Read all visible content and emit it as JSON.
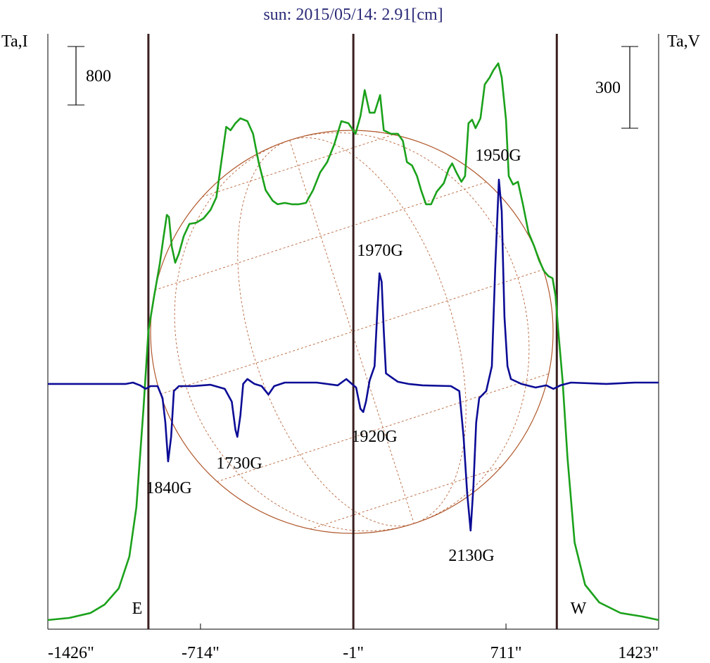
{
  "chart_data": {
    "type": "line",
    "title": "sun: 2015/05/14: 2.91[cm]",
    "y_label": "Ta,I",
    "y2_label": "Ta,V",
    "xlim": [
      -1426,
      1423
    ],
    "xticks": [
      {
        "value": -1426,
        "label": "-1426\""
      },
      {
        "value": -714,
        "label": "-714\""
      },
      {
        "value": -1,
        "label": "-1\""
      },
      {
        "value": 711,
        "label": "711\""
      },
      {
        "value": 1423,
        "label": "1423\""
      }
    ],
    "ylim": [
      0,
      8145
    ],
    "y2lim": [
      -900,
      1285
    ],
    "scale_bars": [
      {
        "value": 800,
        "axis": "y"
      },
      {
        "value": 300,
        "axis": "y2"
      }
    ],
    "vlines": [
      -957,
      -1,
      948
    ],
    "vline_color": "#3a1e1e",
    "disc_color": "#b0582c",
    "annotations": [
      "1950G",
      "1970G",
      "1920G",
      "1840G",
      "1730G",
      "2130G",
      "E",
      "W"
    ],
    "series": [
      {
        "color": "#1ba11b",
        "axis": "y",
        "x": [
          -1426,
          -1326,
          -1227,
          -1161,
          -1095,
          -1046,
          -1013,
          -980,
          -957,
          -930,
          -904,
          -888,
          -871,
          -861,
          -848,
          -832,
          -815,
          -792,
          -766,
          -733,
          -700,
          -667,
          -640,
          -617,
          -594,
          -574,
          -551,
          -528,
          -495,
          -469,
          -443,
          -410,
          -377,
          -354,
          -321,
          -288,
          -255,
          -222,
          -189,
          -156,
          -123,
          -90,
          -57,
          -24,
          9,
          32,
          52,
          75,
          98,
          124,
          141,
          174,
          207,
          230,
          249,
          273,
          296,
          315,
          338,
          362,
          388,
          421,
          444,
          460,
          480,
          503,
          520,
          536,
          553,
          569,
          592,
          612,
          635,
          652,
          675,
          691,
          711,
          724,
          744,
          767,
          790,
          816,
          843,
          866,
          889,
          909,
          928,
          942,
          955,
          975,
          998,
          1031,
          1080,
          1146,
          1245,
          1344,
          1423
        ],
        "values": [
          125,
          154,
          222,
          337,
          559,
          993,
          1668,
          3017,
          4078,
          4560,
          4994,
          5331,
          5668,
          5639,
          5235,
          5013,
          5138,
          5379,
          5543,
          5562,
          5620,
          5736,
          5909,
          6391,
          6873,
          6825,
          6922,
          6989,
          6950,
          6777,
          6391,
          6006,
          5861,
          5813,
          5832,
          5813,
          5813,
          5832,
          6006,
          6247,
          6391,
          6632,
          6950,
          6922,
          6777,
          7018,
          7375,
          7066,
          7066,
          7307,
          6825,
          6777,
          6777,
          6681,
          6391,
          6343,
          6199,
          6006,
          5813,
          5813,
          5986,
          6102,
          6295,
          6372,
          6247,
          6121,
          6199,
          6922,
          6970,
          6854,
          6989,
          7452,
          7548,
          7645,
          7741,
          7548,
          6970,
          6199,
          6083,
          6121,
          5813,
          5427,
          5235,
          5042,
          4897,
          4830,
          4801,
          4560,
          4078,
          3403,
          2343,
          1186,
          607,
          366,
          222,
          174,
          125
        ]
      },
      {
        "color": "#0c0c96",
        "axis": "y2",
        "x": [
          -1426,
          -1062,
          -1029,
          -996,
          -970,
          -947,
          -914,
          -891,
          -878,
          -865,
          -851,
          -838,
          -815,
          -749,
          -667,
          -601,
          -568,
          -551,
          -542,
          -528,
          -515,
          -495,
          -462,
          -429,
          -397,
          -370,
          -321,
          -172,
          -74,
          -34,
          -8,
          12,
          32,
          45,
          58,
          75,
          98,
          111,
          121,
          131,
          141,
          151,
          174,
          207,
          256,
          322,
          454,
          493,
          513,
          530,
          546,
          559,
          572,
          586,
          619,
          645,
          661,
          678,
          691,
          704,
          718,
          734,
          783,
          849,
          899,
          932,
          965,
          1014,
          1179,
          1311,
          1423
        ],
        "values": [
          0,
          0,
          5,
          -5,
          -18,
          -8,
          -8,
          -52,
          -142,
          -284,
          -194,
          -26,
          -8,
          -8,
          -3,
          -18,
          -65,
          -168,
          -194,
          -116,
          0,
          18,
          0,
          -8,
          -39,
          -8,
          5,
          5,
          -5,
          18,
          0,
          -13,
          -91,
          -103,
          -65,
          13,
          65,
          272,
          406,
          375,
          194,
          39,
          26,
          8,
          0,
          -5,
          -8,
          -26,
          -194,
          -401,
          -538,
          -375,
          -142,
          -52,
          -26,
          65,
          427,
          750,
          634,
          246,
          65,
          18,
          0,
          -13,
          -5,
          -18,
          -5,
          5,
          0,
          5,
          5
        ]
      }
    ]
  }
}
